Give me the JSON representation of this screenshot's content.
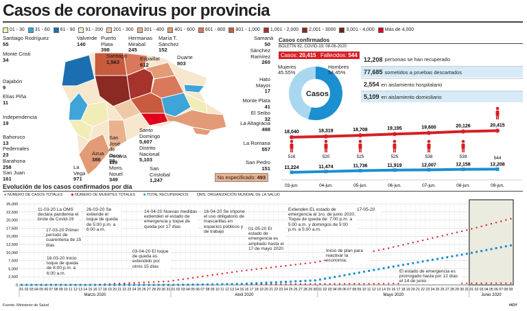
{
  "header": {
    "title": "Casos de coronavirus por provincia"
  },
  "legend": [
    {
      "label": "01 - 30",
      "color": "#f2ecb8"
    },
    {
      "label": "31 - 60",
      "color": "#3fa4d8"
    },
    {
      "label": "61 - 90",
      "color": "#1b6fb0"
    },
    {
      "label": "91 - 200",
      "color": "#f6e7cd"
    },
    {
      "label": "201 - 300",
      "color": "#efc9a5"
    },
    {
      "label": "301 - 400",
      "color": "#e9b18c"
    },
    {
      "label": "401 - 600",
      "color": "#e39a76"
    },
    {
      "label": "601 - 800",
      "color": "#d9785a"
    },
    {
      "label": "801 - 1,000",
      "color": "#c85a3d"
    },
    {
      "label": "1,001 - 2,000",
      "color": "#a6332c"
    },
    {
      "label": "2,001 - 3000",
      "color": "#8a2a22"
    },
    {
      "label": "3,001 - 4,000",
      "color": "#6e1f1a"
    },
    {
      "label": "Más de 4,000",
      "color": "#e0001b"
    }
  ],
  "map": {
    "provinces": [
      {
        "name": "Santiago Rodríguez",
        "value": "55"
      },
      {
        "name": "Monte Cristi",
        "value": "34"
      },
      {
        "name": "Valverde",
        "value": "140"
      },
      {
        "name": "Puerto Plata",
        "value": "398"
      },
      {
        "name": "Santiago",
        "value": "1,563"
      },
      {
        "name": "Hermanas Mirabal",
        "value": "245"
      },
      {
        "name": "Espaillat",
        "value": "612"
      },
      {
        "name": "María T. Sánchez",
        "value": "152"
      },
      {
        "name": "Duarte",
        "value": "803"
      },
      {
        "name": "Samaná",
        "value": "50"
      },
      {
        "name": "Sánchez Ramírez",
        "value": "260"
      },
      {
        "name": "Dajabón",
        "value": "9"
      },
      {
        "name": "Elías Piña",
        "value": "11"
      },
      {
        "name": "Independencia",
        "value": "19"
      },
      {
        "name": "Hato Mayor",
        "value": "17"
      },
      {
        "name": "Monte Plata",
        "value": "41"
      },
      {
        "name": "El Seibo",
        "value": "32"
      },
      {
        "name": "La Altagracia",
        "value": "498"
      },
      {
        "name": "Bahoruco",
        "value": "13"
      },
      {
        "name": "Pedernales",
        "value": "23"
      },
      {
        "name": "Barahona",
        "value": "258"
      },
      {
        "name": "San Juan",
        "value": "161"
      },
      {
        "name": "La Vega",
        "value": "971"
      },
      {
        "name": "Azua",
        "value": "386"
      },
      {
        "name": "San José de Ocoa",
        "value": "38"
      },
      {
        "name": "Peravia",
        "value": "119"
      },
      {
        "name": "Mons. Nouel",
        "value": "349"
      },
      {
        "name": "Santo Domingo",
        "value": "5,607"
      },
      {
        "name": "Distrito Nacional",
        "value": "5,103"
      },
      {
        "name": "San Cristobal",
        "value": "1,247"
      },
      {
        "name": "La Romana",
        "value": "557"
      },
      {
        "name": "San Pedro",
        "value": "151"
      }
    ],
    "unspecified": {
      "label": "No especificado:",
      "value": "493"
    }
  },
  "confirmed": {
    "title": "Casos confirmados",
    "bulletin": "BOLETÍN 82, COVID-19, 08-06-2020",
    "cases_label": "Casos:",
    "cases_value": "20,415",
    "deaths_label": "Fallecidos:",
    "deaths_value": "544",
    "donut_center": "Casos",
    "women_label": "Mujeres",
    "women_pct": "45.55%",
    "men_label": "Hombres",
    "men_pct": "54.45%",
    "women_color": "#a9d7ef",
    "men_color": "#1b8fd0",
    "stats": [
      {
        "value": "12,208",
        "text": "personas se han recuperado"
      },
      {
        "value": "77,685",
        "text": "sometidos a pruebas descartados"
      },
      {
        "value": "2,554",
        "text": "en aislamiento hospitalario"
      },
      {
        "value": "5,109",
        "text": "en aislamiento domiciliario"
      }
    ]
  },
  "mini_chart": {
    "dates": [
      "03-jun.",
      "04-jun.",
      "05-jun.",
      "06-jun.",
      "07-jun.",
      "08-jun.",
      "09-jun."
    ],
    "cases_labels": [
      "18,040",
      "18,319",
      "18,708",
      "19,195",
      "19,600",
      "20,126",
      "20,415"
    ],
    "deaths_labels": [
      "516",
      "520",
      "525",
      "525",
      "538",
      "539",
      "544"
    ],
    "recovered_labels": [
      "11,224",
      "11,474",
      "11,736",
      "11,919",
      "12,007",
      "12,158",
      "12,208"
    ]
  },
  "chart_data": {
    "type": "line",
    "title": "Evolución de los casos confirmados por día",
    "legend": [
      "NÚMERO DE CASOS TOTALES",
      "NÚMERO DE MUERTES TOTALES",
      "TOTAL RECUPERADOS",
      "OMS: ORGANIZACIÓN MUNDIAL DE LA SALUD"
    ],
    "colors": {
      "cases": "#d61f26",
      "deaths": "#d61f26",
      "recovered": "#1b8fd0"
    },
    "y_ticks": [
      "0",
      "2,500",
      "5,000",
      "7,500",
      "10,000",
      "12,500",
      "15,000",
      "17,500",
      "20,000",
      "22,500",
      "25,000"
    ],
    "ylim": [
      0,
      25000
    ],
    "month_labels": [
      "Marzo 2020",
      "Abril 2020",
      "Mayo 2020",
      "Junio 2020"
    ],
    "x_days_march": [
      "01",
      "02",
      "03",
      "04",
      "05",
      "06",
      "07",
      "08",
      "09",
      "10",
      "11",
      "12",
      "13",
      "14",
      "15",
      "16",
      "17",
      "18",
      "19",
      "20",
      "21",
      "22",
      "23",
      "24",
      "25",
      "26",
      "27",
      "28",
      "29",
      "30",
      "31"
    ],
    "x_days_april": [
      "01",
      "02",
      "03",
      "04",
      "05",
      "06",
      "07",
      "08",
      "09",
      "10",
      "11",
      "12",
      "13",
      "14",
      "15",
      "16",
      "17",
      "18",
      "19",
      "20",
      "21",
      "22",
      "23",
      "24",
      "25",
      "26",
      "27",
      "28",
      "29",
      "30"
    ],
    "x_days_may": [
      "01",
      "02",
      "03",
      "04",
      "05",
      "06",
      "07",
      "08",
      "09",
      "10",
      "11",
      "12",
      "13",
      "14",
      "15",
      "16",
      "17",
      "18",
      "19",
      "20",
      "21",
      "22",
      "23",
      "24",
      "25",
      "26",
      "27",
      "28",
      "29",
      "30",
      "31"
    ],
    "x_days_june": [
      "01",
      "02",
      "03",
      "04",
      "05",
      "06",
      "07",
      "08",
      "09"
    ],
    "series": [
      {
        "name": "NÚMERO DE CASOS TOTALES",
        "points": [
          [
            "03-01",
            0
          ],
          [
            "03-15",
            11
          ],
          [
            "03-31",
            1109
          ],
          [
            "04-15",
            4335
          ],
          [
            "04-30",
            6972
          ],
          [
            "05-15",
            11320
          ],
          [
            "05-31",
            16908
          ],
          [
            "06-09",
            20415
          ]
        ]
      },
      {
        "name": "NÚMERO DE MUERTES TOTALES",
        "points": [
          [
            "03-01",
            0
          ],
          [
            "03-31",
            51
          ],
          [
            "04-30",
            301
          ],
          [
            "05-31",
            502
          ],
          [
            "06-09",
            544
          ]
        ]
      },
      {
        "name": "TOTAL RECUPERADOS",
        "points": [
          [
            "03-01",
            0
          ],
          [
            "04-01",
            4
          ],
          [
            "04-15",
            300
          ],
          [
            "04-30",
            1387
          ],
          [
            "05-15",
            5400
          ],
          [
            "05-31",
            9600
          ],
          [
            "06-09",
            12208
          ]
        ]
      }
    ],
    "annotations": [
      {
        "text": "11-03-20 La OMS declara pandemia el brote de Covid-19"
      },
      {
        "text": "17-03-20 Primer período de cuarentena de 15 días"
      },
      {
        "text": "18-03-20 Inicio toque de queda de 8:00 p.m. a 6:00 a.m."
      },
      {
        "text": "26-03-20 Se extiende el toque de queda de 5:00 p.m. a 6:00 a.m."
      },
      {
        "text": "03-04-20 El toque de queda es extendido por otros 15 días"
      },
      {
        "text": "14-04-20 Nuevas medidas extienden el estado de emergencia y toque de queda por 17 días"
      },
      {
        "text": "16-04-20 Se impone el uso obligatorio de mascarillas en espacios públicos y de trabajo"
      },
      {
        "text": "01-05-20 El estado de emergencia es ampliado hasta el 17 de mayo 2020"
      },
      {
        "text": "Extienden EL estado de emergencia al 1ro. de junio 2020. Toque de queda de: 7:00 p.m. a 5:00 a.m. y domingos de 5:00 p.m. a 5:00 a.m."
      },
      {
        "text": "17-05-20"
      },
      {
        "text": "Inicio de plan para reactivar la economía."
      },
      {
        "text": "El estado de emergencia es prorrogado hasta por 12 días el 14 de junio"
      }
    ]
  },
  "footer": {
    "source": "Fuente: Ministerio de Salud",
    "brand": "HOY"
  }
}
